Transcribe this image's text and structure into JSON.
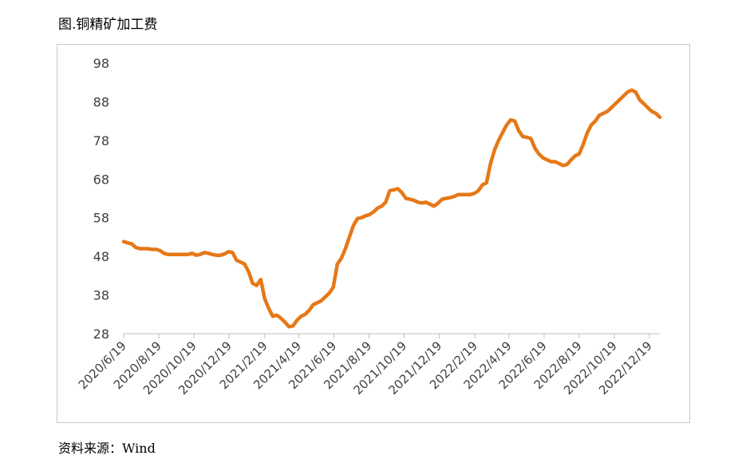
{
  "figure": {
    "title": "图.铜精矿加工费",
    "source": "资料来源：Wind"
  },
  "chart_data": {
    "type": "line",
    "title": "",
    "xlabel": "",
    "ylabel": "",
    "ylim": [
      28,
      98
    ],
    "yticks": [
      28,
      38,
      48,
      58,
      68,
      78,
      88,
      98
    ],
    "xticks": [
      "2020/6/19",
      "2020/8/19",
      "2020/10/19",
      "2020/12/19",
      "2021/2/19",
      "2021/4/19",
      "2021/6/19",
      "2021/8/19",
      "2021/10/19",
      "2021/12/19",
      "2022/2/19",
      "2022/4/19",
      "2022/6/19",
      "2022/8/19",
      "2022/10/19",
      "2022/12/19"
    ],
    "grid": false,
    "legend": "none",
    "color": "#e67817",
    "series": [
      {
        "x": [
          "2020-06-19",
          "2020-06-26",
          "2020-07-03",
          "2020-07-10",
          "2020-07-17",
          "2020-07-24",
          "2020-07-31",
          "2020-08-07",
          "2020-08-14",
          "2020-08-21",
          "2020-08-28",
          "2020-09-04",
          "2020-09-11",
          "2020-09-18",
          "2020-09-25",
          "2020-10-02",
          "2020-10-09",
          "2020-10-16",
          "2020-10-23",
          "2020-10-30",
          "2020-11-06",
          "2020-11-13",
          "2020-11-20",
          "2020-11-27",
          "2020-12-04",
          "2020-12-11",
          "2020-12-18",
          "2020-12-25",
          "2021-01-01",
          "2021-01-08",
          "2021-01-15",
          "2021-01-22",
          "2021-01-29",
          "2021-02-05",
          "2021-02-12",
          "2021-02-19",
          "2021-02-26",
          "2021-03-05",
          "2021-03-12",
          "2021-03-19",
          "2021-03-26",
          "2021-04-02",
          "2021-04-09",
          "2021-04-16",
          "2021-04-23",
          "2021-04-30",
          "2021-05-07",
          "2021-05-14",
          "2021-05-21",
          "2021-05-28",
          "2021-06-04",
          "2021-06-11",
          "2021-06-18",
          "2021-06-25",
          "2021-07-02",
          "2021-07-09",
          "2021-07-16",
          "2021-07-23",
          "2021-07-30",
          "2021-08-06",
          "2021-08-13",
          "2021-08-20",
          "2021-08-27",
          "2021-09-03",
          "2021-09-10",
          "2021-09-17",
          "2021-09-24",
          "2021-10-01",
          "2021-10-08",
          "2021-10-15",
          "2021-10-22",
          "2021-10-29",
          "2021-11-05",
          "2021-11-12",
          "2021-11-19",
          "2021-11-26",
          "2021-12-03",
          "2021-12-10",
          "2021-12-17",
          "2021-12-24",
          "2021-12-31",
          "2022-01-07",
          "2022-01-14",
          "2022-01-21",
          "2022-01-28",
          "2022-02-04",
          "2022-02-11",
          "2022-02-18",
          "2022-02-25",
          "2022-03-04",
          "2022-03-11",
          "2022-03-18",
          "2022-03-25",
          "2022-04-01",
          "2022-04-08",
          "2022-04-15",
          "2022-04-22",
          "2022-04-29",
          "2022-05-06",
          "2022-05-13",
          "2022-05-20",
          "2022-05-27",
          "2022-06-03",
          "2022-06-10",
          "2022-06-17",
          "2022-06-24",
          "2022-07-01",
          "2022-07-08",
          "2022-07-15",
          "2022-07-22",
          "2022-07-29",
          "2022-08-05",
          "2022-08-12",
          "2022-08-19",
          "2022-08-26",
          "2022-09-02",
          "2022-09-09",
          "2022-09-16",
          "2022-09-23",
          "2022-09-30",
          "2022-10-07",
          "2022-10-14",
          "2022-10-21",
          "2022-10-28",
          "2022-11-04",
          "2022-11-11",
          "2022-11-18",
          "2022-11-25",
          "2022-12-02",
          "2022-12-09",
          "2022-12-16",
          "2022-12-23",
          "2022-12-30",
          "2023-01-06"
        ],
        "values": [
          51.8,
          51.5,
          51.2,
          50.3,
          50.0,
          50.0,
          50.0,
          49.8,
          49.8,
          49.5,
          48.8,
          48.5,
          48.5,
          48.5,
          48.5,
          48.5,
          48.5,
          48.8,
          48.3,
          48.5,
          49.0,
          48.8,
          48.5,
          48.3,
          48.3,
          48.6,
          49.2,
          49.0,
          47.0,
          46.5,
          46.0,
          44.0,
          41.0,
          40.5,
          42.0,
          37.0,
          34.5,
          32.5,
          32.8,
          32.0,
          31.0,
          29.8,
          30.0,
          31.5,
          32.5,
          33.0,
          34.0,
          35.5,
          36.0,
          36.5,
          37.5,
          38.5,
          40.0,
          46.0,
          47.5,
          50.0,
          53.0,
          56.0,
          57.8,
          58.0,
          58.5,
          58.8,
          59.5,
          60.5,
          61.0,
          62.0,
          65.0,
          65.2,
          65.5,
          64.5,
          63.0,
          62.8,
          62.5,
          62.0,
          61.8,
          62.0,
          61.5,
          61.0,
          61.8,
          62.8,
          63.0,
          63.2,
          63.5,
          64.0,
          64.0,
          64.0,
          64.0,
          64.3,
          65.0,
          66.5,
          67.0,
          72.0,
          75.5,
          78.0,
          80.0,
          82.0,
          83.3,
          83.0,
          80.5,
          79.0,
          78.8,
          78.5,
          76.0,
          74.5,
          73.5,
          73.0,
          72.5,
          72.5,
          72.0,
          71.5,
          71.8,
          73.0,
          74.0,
          74.5,
          77.0,
          80.0,
          82.0,
          83.0,
          84.5,
          85.0,
          85.5,
          86.5,
          87.5,
          88.5,
          89.5,
          90.5,
          91.0,
          90.5,
          88.5,
          87.5,
          86.5,
          85.5,
          85.0,
          84.0
        ]
      }
    ]
  }
}
